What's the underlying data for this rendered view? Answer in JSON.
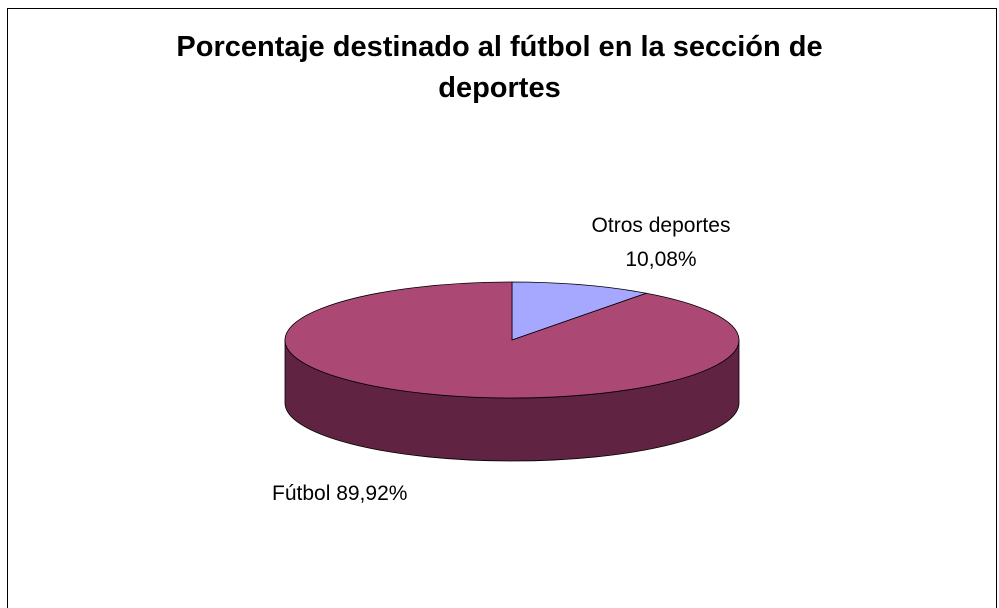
{
  "chart_data": {
    "type": "pie",
    "title_lines": [
      "Porcentaje destinado al fútbol en la sección de",
      "deportes"
    ],
    "slices": [
      {
        "name": "Otros deportes",
        "percent": 10.08,
        "label_percent": "10,08%",
        "color_top": "#a6a8ff",
        "color_side": "#5e5fa5"
      },
      {
        "name": "Fútbol",
        "percent": 89.92,
        "label_percent": "89,92%",
        "color_top": "#ab4974",
        "color_side": "#602442"
      }
    ],
    "style": "3d",
    "start": "12 o'clock, clockwise"
  }
}
